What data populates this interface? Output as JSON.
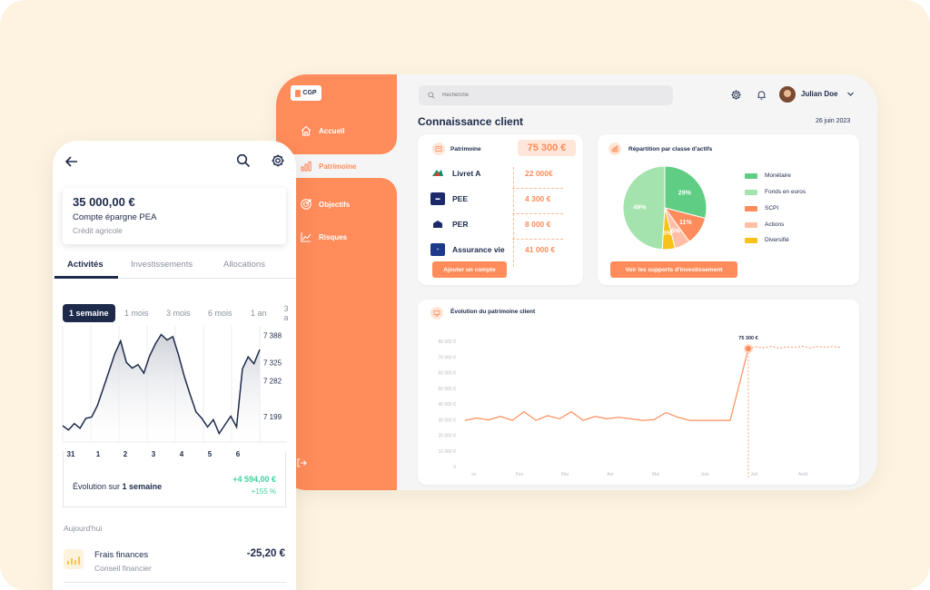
{
  "dashboard": {
    "logo_text": "CGP",
    "nav": [
      {
        "label": "Accueil",
        "icon": "home-icon"
      },
      {
        "label": "Patrimoine",
        "icon": "bar-chart-icon",
        "active": true
      },
      {
        "label": "Objectifs",
        "icon": "target-icon"
      },
      {
        "label": "Risques",
        "icon": "line-chart-icon"
      }
    ],
    "search_placeholder": "Recherche",
    "user_name": "Julian Doe",
    "page_title": "Connaissance client",
    "date": "26 juin 2023",
    "patrimoine": {
      "title": "Patrimoine",
      "total": "75 300 €",
      "accounts": [
        {
          "name": "Livret A",
          "amount": "22 000€",
          "logo": "credit-agricole-logo",
          "color": "#0a8f6a"
        },
        {
          "name": "PEE",
          "amount": "4 300 €",
          "logo": "pee-logo",
          "color": "#1d2a6a"
        },
        {
          "name": "PER",
          "amount": "8 000 €",
          "logo": "per-logo",
          "color": "#1d2a6a"
        },
        {
          "name": "Assurance vie",
          "amount": "41 000 €",
          "logo": "assurance-logo",
          "color": "#1d3a8a"
        }
      ],
      "button": "Ajouter un compte"
    },
    "repartition": {
      "title": "Répartition par classe d'actifs",
      "button": "Voir les supports d'investissement",
      "chart_data": {
        "type": "pie",
        "slices": [
          {
            "label": "Monétaire",
            "value": 29,
            "display": "29%",
            "color": "#5fcd84"
          },
          {
            "label": "SCPI",
            "value": 11,
            "display": "11%",
            "color": "#ff8c5a"
          },
          {
            "label": "Actions",
            "value": 6,
            "display": "6%",
            "color": "#ffbfa6"
          },
          {
            "label": "Diversifié",
            "value": 5,
            "display": "5%",
            "color": "#f7c21a"
          },
          {
            "label": "Fonds en euros",
            "value": 49,
            "display": "49%",
            "color": "#a4e3ae"
          }
        ],
        "legend": [
          "Monétaire",
          "Fonds en euros",
          "SCPI",
          "Actions",
          "Diversifié"
        ],
        "legend_position": "right"
      }
    },
    "evolution": {
      "title": "Évolution du patrimoine client",
      "chart_data": {
        "type": "line",
        "y_ticks": [
          "80 000 €",
          "70 000 €",
          "60 000 €",
          "50 000 €",
          "40 000 €",
          "30 000 €",
          "20 000 €",
          "10 000 €",
          "0"
        ],
        "ylim": [
          0,
          80000
        ],
        "x_labels": [
          "nc",
          "Fev",
          "Mar",
          "Avr",
          "Mai",
          "Juin",
          "Juil",
          "Août"
        ],
        "values": [
          29500,
          31000,
          29800,
          32000,
          29500,
          35000,
          29500,
          32500,
          30500,
          35000,
          29500,
          32000,
          30500,
          31500,
          30500,
          29500,
          30000,
          34500,
          31500,
          29500,
          29500,
          29500,
          29500,
          75300
        ],
        "projection": [
          75300,
          76500,
          75800,
          76800,
          75600,
          76400,
          76000,
          76800,
          75800,
          76600,
          76300,
          76500,
          76200
        ],
        "marker_label": "75 300 €",
        "color": "#ff8c5a"
      }
    }
  },
  "phone": {
    "account": {
      "amount": "35 000,00 €",
      "type": "Compte épargne PEA",
      "bank": "Crédit agricole"
    },
    "tabs": [
      "Activités",
      "Investissements",
      "Allocations"
    ],
    "periods": [
      "1 semaine",
      "1 mois",
      "3 mois",
      "6 mois",
      "1 an",
      "3 a"
    ],
    "chart_data": {
      "type": "line",
      "x_labels": [
        "31",
        "1",
        "2",
        "3",
        "4",
        "5",
        "6"
      ],
      "y_ticks": [
        "7 388",
        "7 325",
        "7 282",
        "7 199"
      ],
      "values": [
        7178,
        7168,
        7183,
        7172,
        7195,
        7198,
        7225,
        7265,
        7305,
        7345,
        7375,
        7325,
        7312,
        7320,
        7300,
        7340,
        7368,
        7390,
        7377,
        7385,
        7342,
        7292,
        7250,
        7210,
        7195,
        7175,
        7192,
        7160,
        7180,
        7200,
        7175,
        7310,
        7338,
        7322,
        7355
      ],
      "ylim": [
        7140,
        7410
      ],
      "color": "#1d2a4a"
    },
    "evolution": {
      "label_prefix": "Évolution sur",
      "label_period": "1 semaine",
      "value": "+4 594,00 €",
      "pct": "+155 %"
    },
    "today_label": "Aujourd'hui",
    "transaction": {
      "name": "Frais finances",
      "sub": "Conseil financier",
      "amount": "-25,20 €"
    }
  }
}
